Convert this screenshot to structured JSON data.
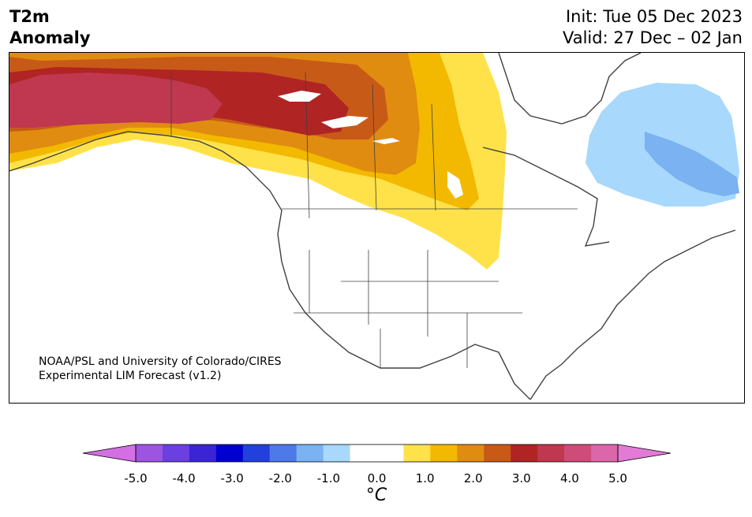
{
  "header": {
    "title_line1": "T2m",
    "title_line2": "Anomaly",
    "init_text": "Init: Tue 05 Dec 2023",
    "valid_text": "Valid: 27 Dec – 02 Jan"
  },
  "credit": {
    "line1": "NOAA/PSL and University of Colorado/CIRES",
    "line2": "Experimental LIM Forecast (v1.2)"
  },
  "colorbar": {
    "unit_label": "°C",
    "ticks": [
      "-5.0",
      "-4.0",
      "-3.0",
      "-2.0",
      "-1.0",
      "0.0",
      "1.0",
      "2.0",
      "3.0",
      "4.0",
      "5.0"
    ],
    "bins": [
      {
        "value": -4.75,
        "color": "#d36fe3"
      },
      {
        "value": -4.25,
        "color": "#9c55e0"
      },
      {
        "value": -3.75,
        "color": "#6c3fe0"
      },
      {
        "value": -3.25,
        "color": "#3a24d6"
      },
      {
        "value": -2.75,
        "color": "#0000d0"
      },
      {
        "value": -2.25,
        "color": "#2240dc"
      },
      {
        "value": -1.75,
        "color": "#4e79e8"
      },
      {
        "value": -1.25,
        "color": "#7ab2f2"
      },
      {
        "value": -0.75,
        "color": "#a8d8fb"
      },
      {
        "value": -0.25,
        "color": "#ffffff"
      },
      {
        "value": 0.25,
        "color": "#ffffff"
      },
      {
        "value": 0.75,
        "color": "#ffe24a"
      },
      {
        "value": 1.25,
        "color": "#f2b900"
      },
      {
        "value": 1.75,
        "color": "#e08c10"
      },
      {
        "value": 2.25,
        "color": "#c85a18"
      },
      {
        "value": 2.75,
        "color": "#b02424"
      },
      {
        "value": 3.25,
        "color": "#c03750"
      },
      {
        "value": 3.75,
        "color": "#cf4c7a"
      },
      {
        "value": 4.25,
        "color": "#db66aa"
      },
      {
        "value": 4.75,
        "color": "#e37ad6"
      }
    ]
  },
  "map": {
    "region": "North America",
    "ocean_color": "#ffffff",
    "coast_color": "#404040",
    "anomaly_regions": [
      {
        "name": "alaska-yukon-warm-core",
        "anomaly": 3.25,
        "color": "#c03750"
      },
      {
        "name": "western-canada-warm",
        "anomaly": 2.75,
        "color": "#b02424"
      },
      {
        "name": "prairies-warm",
        "anomaly": 1.75,
        "color": "#e08c10"
      },
      {
        "name": "northern-plains-warm",
        "anomaly": 0.75,
        "color": "#ffe24a"
      },
      {
        "name": "labrador-cool",
        "anomaly": -0.75,
        "color": "#a8d8fb"
      },
      {
        "name": "labrador-coast-cool",
        "anomaly": -1.25,
        "color": "#7ab2f2"
      }
    ]
  }
}
